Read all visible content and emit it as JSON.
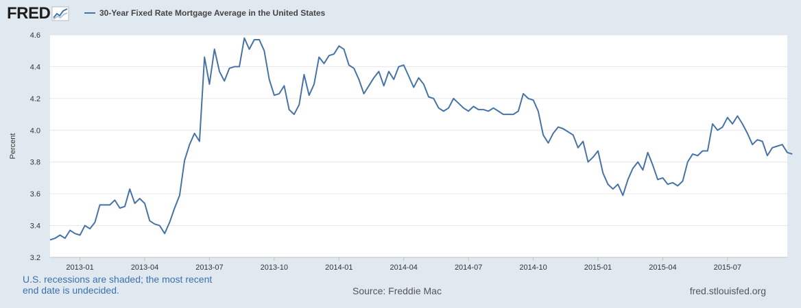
{
  "header": {
    "logo_text": "FRED",
    "series_title": "30-Year Fixed Rate Mortgage Average in the United States"
  },
  "footer": {
    "recession_note": "U.S. recessions are shaded; the most recent end date is undecided.",
    "source": "Source: Freddie Mac",
    "site": "fred.stlouisfed.org"
  },
  "colors": {
    "line": "#4572a7",
    "plot_bg": "#ffffff",
    "page_bg": "#e1e9f0",
    "grid": "#e6e6e6"
  },
  "chart_data": {
    "type": "line",
    "title": "30-Year Fixed Rate Mortgage Average in the United States",
    "xlabel": "",
    "ylabel": "Percent",
    "ylim": [
      3.2,
      4.6
    ],
    "yticks": [
      3.2,
      3.4,
      3.6,
      3.8,
      4.0,
      4.2,
      4.4,
      4.6
    ],
    "ytick_labels": [
      "3.2",
      "3.4",
      "3.6",
      "3.8",
      "4.0",
      "4.2",
      "4.4",
      "4.6"
    ],
    "xticks": [
      "2013-01",
      "2013-04",
      "2013-07",
      "2013-10",
      "2014-01",
      "2014-04",
      "2014-07",
      "2014-10",
      "2015-01",
      "2015-04",
      "2015-07"
    ],
    "x_range_index": [
      0,
      148
    ],
    "xtick_index": [
      6,
      19,
      32,
      45,
      58,
      71,
      84,
      97,
      110,
      123,
      136
    ],
    "series": [
      {
        "name": "30-Year Fixed Rate Mortgage Average in the United States",
        "frequency": "weekly",
        "values": [
          3.31,
          3.32,
          3.34,
          3.32,
          3.37,
          3.35,
          3.34,
          3.4,
          3.38,
          3.42,
          3.53,
          3.53,
          3.53,
          3.56,
          3.51,
          3.52,
          3.63,
          3.54,
          3.57,
          3.54,
          3.43,
          3.41,
          3.4,
          3.35,
          3.42,
          3.51,
          3.59,
          3.81,
          3.91,
          3.98,
          3.93,
          4.46,
          4.29,
          4.51,
          4.37,
          4.31,
          4.39,
          4.4,
          4.4,
          4.58,
          4.51,
          4.57,
          4.57,
          4.5,
          4.32,
          4.22,
          4.23,
          4.28,
          4.13,
          4.1,
          4.16,
          4.35,
          4.22,
          4.29,
          4.46,
          4.42,
          4.47,
          4.48,
          4.53,
          4.51,
          4.41,
          4.39,
          4.32,
          4.23,
          4.28,
          4.33,
          4.37,
          4.28,
          4.37,
          4.32,
          4.4,
          4.41,
          4.34,
          4.27,
          4.33,
          4.29,
          4.21,
          4.2,
          4.14,
          4.12,
          4.14,
          4.2,
          4.17,
          4.14,
          4.12,
          4.15,
          4.13,
          4.13,
          4.12,
          4.14,
          4.12,
          4.1,
          4.1,
          4.1,
          4.12,
          4.23,
          4.2,
          4.19,
          4.12,
          3.97,
          3.92,
          3.98,
          4.02,
          4.01,
          3.99,
          3.97,
          3.89,
          3.93,
          3.8,
          3.83,
          3.87,
          3.73,
          3.66,
          3.63,
          3.66,
          3.59,
          3.69,
          3.76,
          3.8,
          3.75,
          3.86,
          3.78,
          3.69,
          3.7,
          3.66,
          3.67,
          3.65,
          3.68,
          3.8,
          3.85,
          3.84,
          3.87,
          3.87,
          4.04,
          4.0,
          4.02,
          4.08,
          4.04,
          4.09,
          4.04,
          3.98,
          3.91,
          3.94,
          3.93,
          3.84,
          3.89,
          3.9,
          3.91,
          3.86,
          3.85
        ]
      }
    ]
  }
}
